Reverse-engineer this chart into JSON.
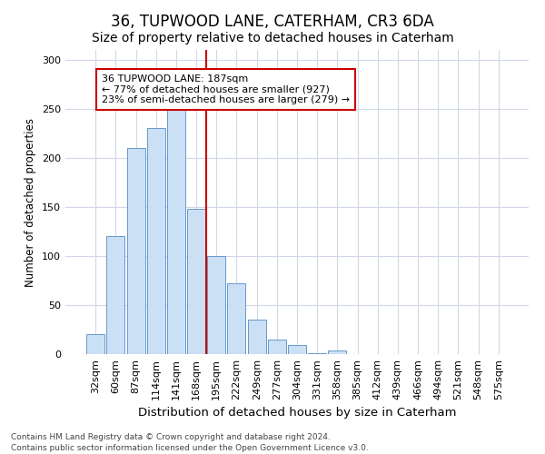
{
  "title1": "36, TUPWOOD LANE, CATERHAM, CR3 6DA",
  "title2": "Size of property relative to detached houses in Caterham",
  "xlabel": "Distribution of detached houses by size in Caterham",
  "ylabel": "Number of detached properties",
  "categories": [
    "32sqm",
    "60sqm",
    "87sqm",
    "114sqm",
    "141sqm",
    "168sqm",
    "195sqm",
    "222sqm",
    "249sqm",
    "277sqm",
    "304sqm",
    "331sqm",
    "358sqm",
    "385sqm",
    "412sqm",
    "439sqm",
    "466sqm",
    "494sqm",
    "521sqm",
    "548sqm",
    "575sqm"
  ],
  "values": [
    20,
    120,
    210,
    230,
    250,
    148,
    100,
    72,
    35,
    15,
    9,
    1,
    4,
    0,
    0,
    0,
    0,
    0,
    0,
    0,
    0
  ],
  "bar_color": "#cce0f5",
  "bar_edge_color": "#6699cc",
  "vline_x": 5.5,
  "vline_color": "#cc0000",
  "annotation_text": "36 TUPWOOD LANE: 187sqm\n← 77% of detached houses are smaller (927)\n23% of semi-detached houses are larger (279) →",
  "annotation_box_color": "white",
  "annotation_box_edge_color": "#cc0000",
  "ylim": [
    0,
    310
  ],
  "yticks": [
    0,
    50,
    100,
    150,
    200,
    250,
    300
  ],
  "footnote": "Contains HM Land Registry data © Crown copyright and database right 2024.\nContains public sector information licensed under the Open Government Licence v3.0.",
  "bg_color": "#ffffff",
  "plot_bg_color": "#ffffff",
  "title1_fontsize": 12,
  "title2_fontsize": 10,
  "xlabel_fontsize": 9.5,
  "ylabel_fontsize": 8.5,
  "tick_fontsize": 8,
  "footnote_fontsize": 6.5,
  "grid_color": "#d0d8e8"
}
